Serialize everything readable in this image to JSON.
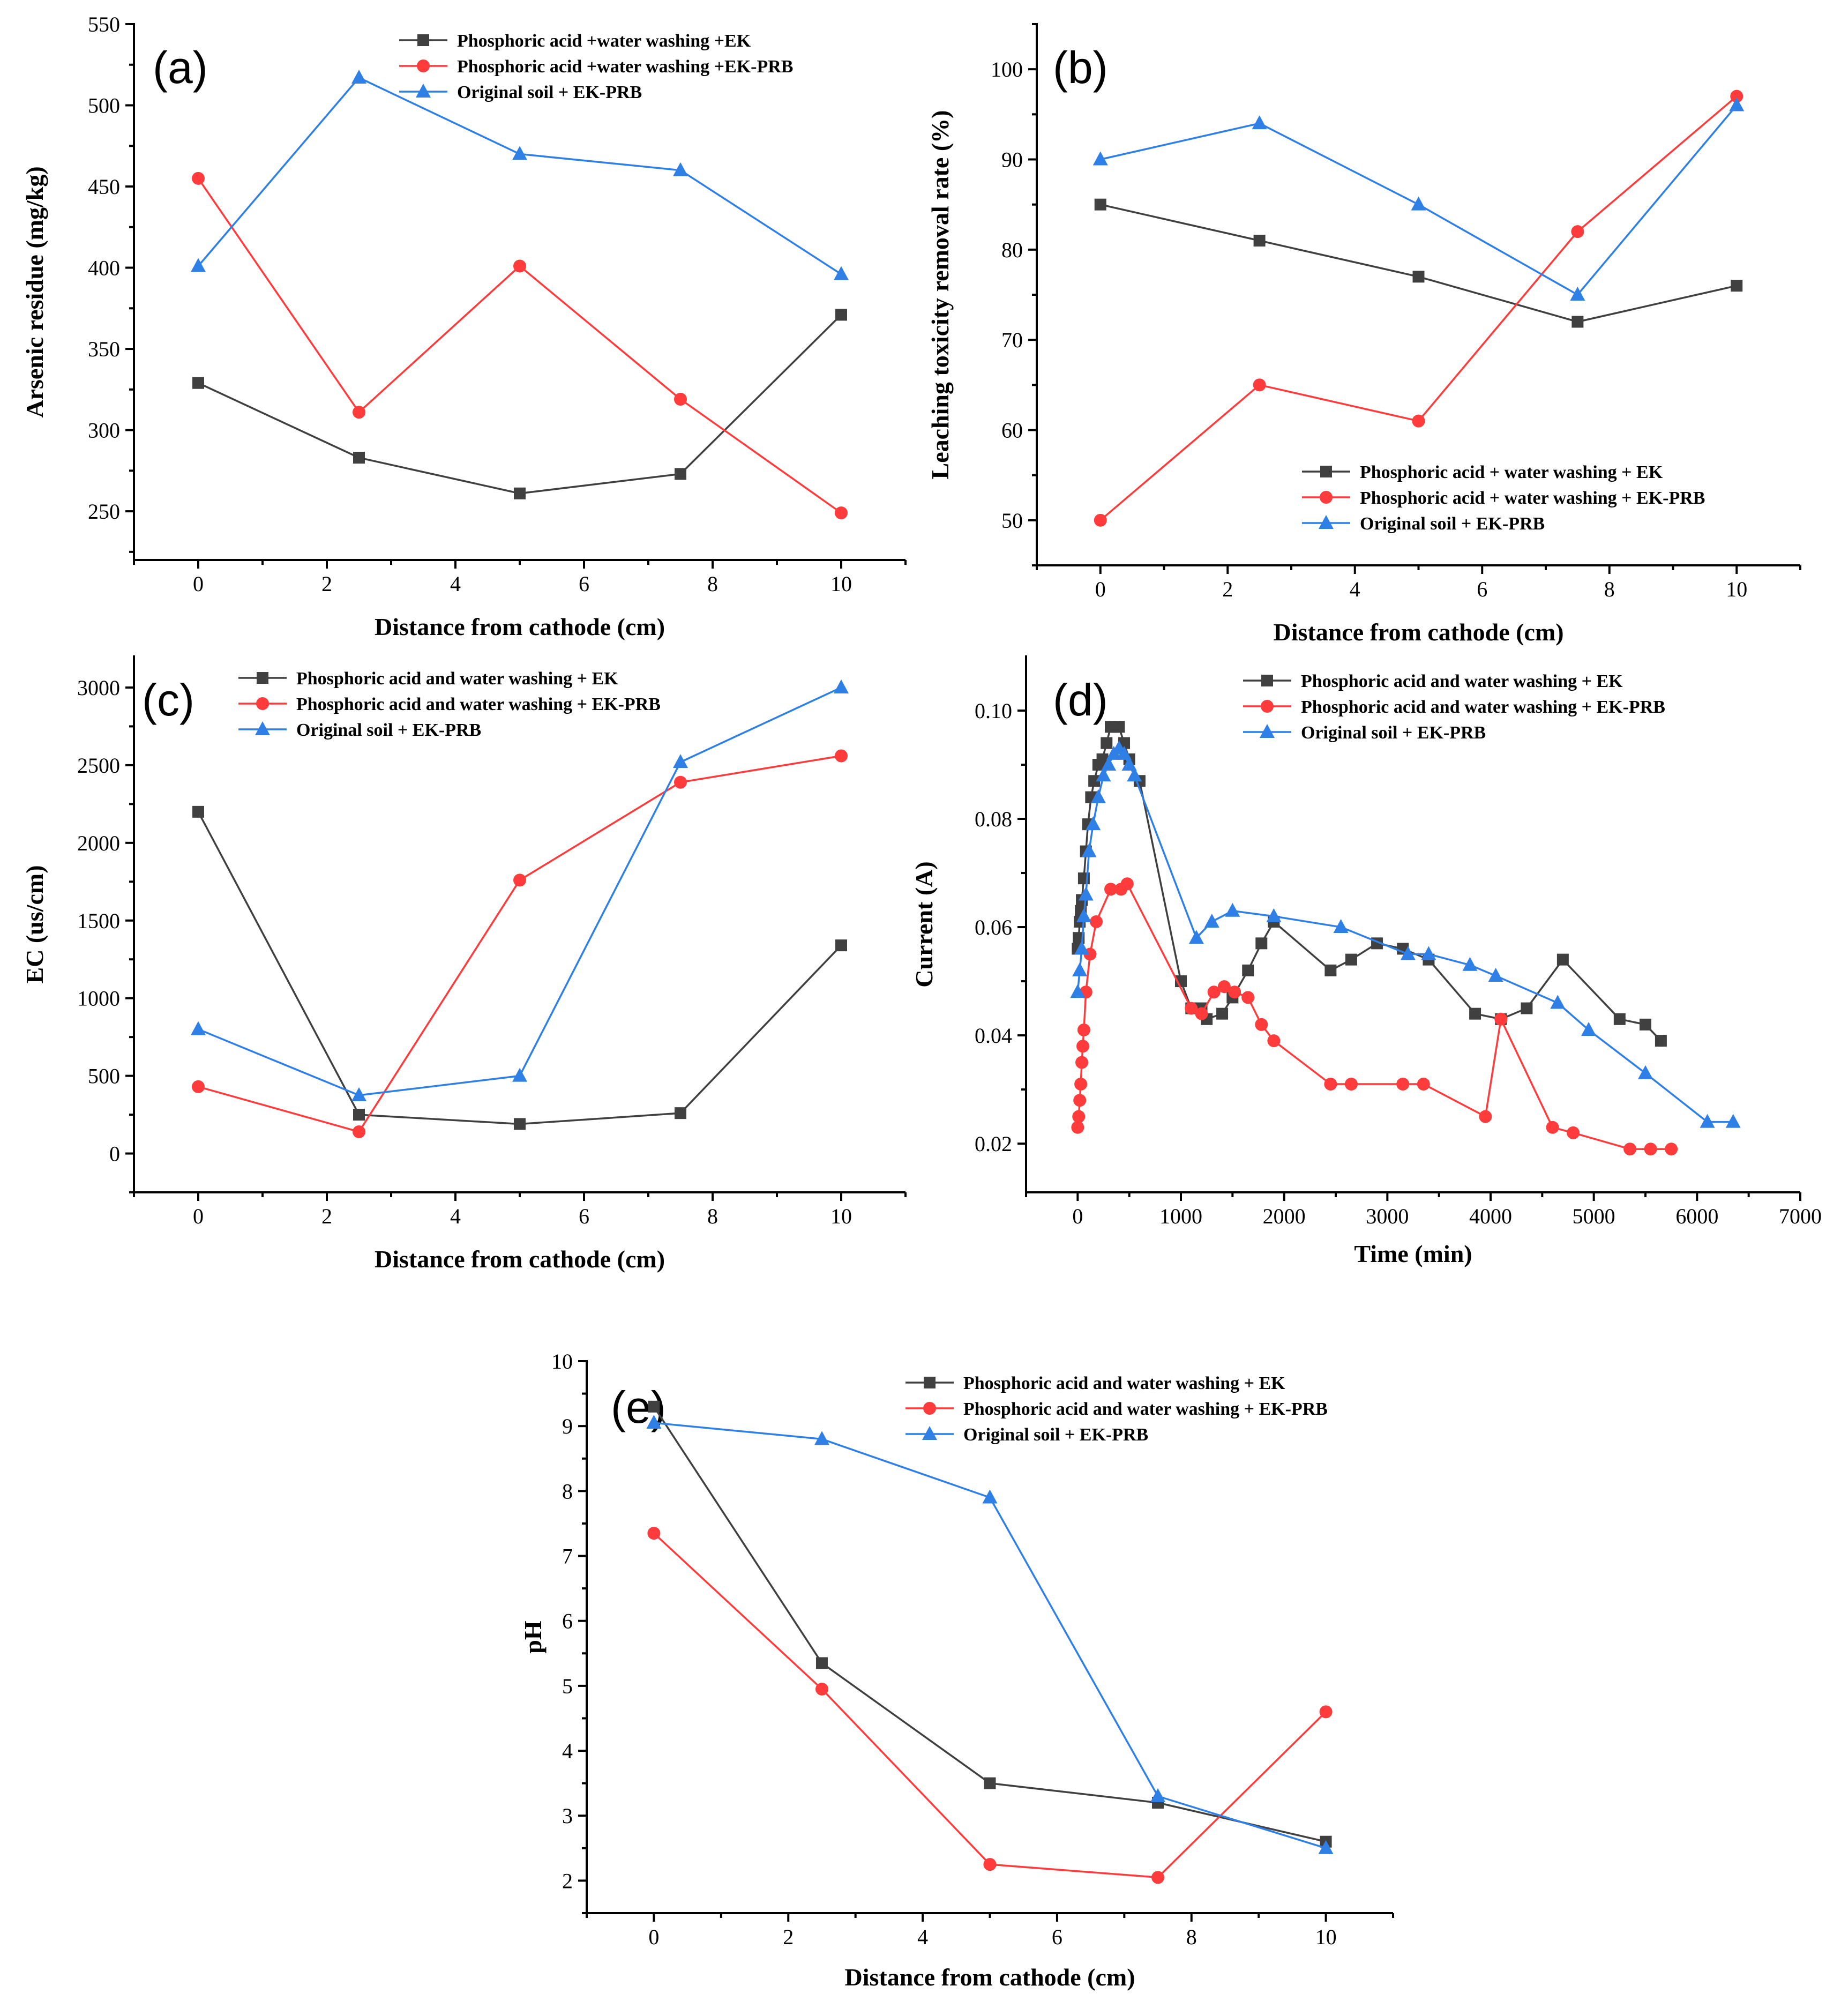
{
  "colors": {
    "black_series": "#404040",
    "red_series": "#ff3b3b",
    "blue_series": "#2f80e6",
    "axis": "#000000"
  },
  "chart_data": [
    {
      "panel_label": "(a)",
      "type": "line",
      "xlabel": "Distance from cathode (cm)",
      "ylabel": "Arsenic residue (mg/kg)",
      "xlim": [
        -1,
        11
      ],
      "ylim": [
        220,
        550
      ],
      "xticks": [
        0,
        2,
        4,
        6,
        8,
        10
      ],
      "yticks": [
        250,
        300,
        350,
        400,
        450,
        500,
        550
      ],
      "legend_position": "top",
      "series": [
        {
          "name": "Phosphoric acid +water washing +EK",
          "color": "#404040",
          "marker": "square",
          "x": [
            0,
            2.5,
            5,
            7.5,
            10
          ],
          "y": [
            329,
            283,
            261,
            273,
            371
          ]
        },
        {
          "name": "Phosphoric acid +water washing +EK-PRB",
          "color": "#ff3b3b",
          "marker": "circle",
          "x": [
            0,
            2.5,
            5,
            7.5,
            10
          ],
          "y": [
            455,
            311,
            401,
            319,
            249
          ]
        },
        {
          "name": "Original soil + EK-PRB",
          "color": "#2f80e6",
          "marker": "triangle",
          "x": [
            0,
            2.5,
            5,
            7.5,
            10
          ],
          "y": [
            401,
            517,
            470,
            460,
            396
          ]
        }
      ]
    },
    {
      "panel_label": "(b)",
      "type": "line",
      "xlabel": "Distance from cathode (cm)",
      "ylabel": "Leaching toxicity removal rate (%)",
      "xlim": [
        -1,
        11
      ],
      "ylim": [
        45,
        105
      ],
      "xticks": [
        0,
        2,
        4,
        6,
        8,
        10
      ],
      "yticks": [
        50,
        60,
        70,
        80,
        90,
        100
      ],
      "legend_position": "bottom-right",
      "series": [
        {
          "name": "Phosphoric acid + water washing + EK",
          "color": "#404040",
          "marker": "square",
          "x": [
            0,
            2.5,
            5,
            7.5,
            10
          ],
          "y": [
            85,
            81,
            77,
            72,
            76
          ]
        },
        {
          "name": "Phosphoric acid + water washing + EK-PRB",
          "color": "#ff3b3b",
          "marker": "circle",
          "x": [
            0,
            2.5,
            5,
            7.5,
            10
          ],
          "y": [
            50,
            65,
            61,
            82,
            97
          ]
        },
        {
          "name": "Original soil + EK-PRB",
          "color": "#2f80e6",
          "marker": "triangle",
          "x": [
            0,
            2.5,
            5,
            7.5,
            10
          ],
          "y": [
            90,
            94,
            85,
            75,
            96
          ]
        }
      ]
    },
    {
      "panel_label": "(c)",
      "type": "line",
      "xlabel": "Distance from cathode (cm)",
      "ylabel": "EC (us/cm)",
      "xlim": [
        -1,
        11
      ],
      "ylim": [
        -250,
        3200
      ],
      "xticks": [
        0,
        2,
        4,
        6,
        8,
        10
      ],
      "yticks": [
        0,
        500,
        1000,
        1500,
        2000,
        2500,
        3000
      ],
      "legend_position": "top",
      "series": [
        {
          "name": "Phosphoric acid and water washing + EK",
          "color": "#404040",
          "marker": "square",
          "x": [
            0,
            2.5,
            5,
            7.5,
            10
          ],
          "y": [
            2200,
            250,
            190,
            260,
            1340
          ]
        },
        {
          "name": "Phosphoric acid and water washing + EK-PRB",
          "color": "#ff3b3b",
          "marker": "circle",
          "x": [
            0,
            2.5,
            5,
            7.5,
            10
          ],
          "y": [
            430,
            140,
            1760,
            2390,
            2560
          ]
        },
        {
          "name": "Original soil + EK-PRB",
          "color": "#2f80e6",
          "marker": "triangle",
          "x": [
            0,
            2.5,
            5,
            7.5,
            10
          ],
          "y": [
            800,
            375,
            500,
            2520,
            3000
          ]
        }
      ]
    },
    {
      "panel_label": "(d)",
      "type": "line",
      "xlabel": "Time (min)",
      "ylabel": "Current (A)",
      "xlim": [
        -500,
        7000
      ],
      "ylim": [
        0.011,
        0.11
      ],
      "xticks": [
        0,
        1000,
        2000,
        3000,
        4000,
        5000,
        6000,
        7000
      ],
      "yticks": [
        0.02,
        0.04,
        0.06,
        0.08,
        0.1
      ],
      "ytick_labels": [
        "0.02",
        "0.04",
        "0.06",
        "0.08",
        "0.10"
      ],
      "legend_position": "top",
      "series": [
        {
          "name": "Phosphoric acid and water washing + EK",
          "color": "#404040",
          "marker": "square",
          "x": [
            0,
            10,
            20,
            30,
            40,
            60,
            80,
            100,
            130,
            160,
            200,
            240,
            280,
            320,
            360,
            400,
            450,
            500,
            600,
            1000,
            1100,
            1200,
            1250,
            1400,
            1500,
            1650,
            1780,
            1900,
            2450,
            2650,
            2900,
            3150,
            3400,
            3850,
            4100,
            4350,
            4700,
            5250,
            5500,
            5650
          ],
          "y": [
            0.056,
            0.058,
            0.061,
            0.063,
            0.065,
            0.069,
            0.074,
            0.079,
            0.084,
            0.087,
            0.09,
            0.091,
            0.094,
            0.097,
            0.097,
            0.097,
            0.094,
            0.091,
            0.087,
            0.05,
            0.045,
            0.045,
            0.043,
            0.044,
            0.047,
            0.052,
            0.057,
            0.061,
            0.052,
            0.054,
            0.057,
            0.056,
            0.054,
            0.044,
            0.043,
            0.045,
            0.054,
            0.043,
            0.042,
            0.039
          ]
        },
        {
          "name": "Phosphoric acid and water washing + EK-PRB",
          "color": "#ff3b3b",
          "marker": "circle",
          "x": [
            0,
            10,
            20,
            30,
            40,
            50,
            60,
            80,
            120,
            180,
            320,
            420,
            480,
            1100,
            1200,
            1320,
            1420,
            1520,
            1650,
            1780,
            1900,
            2450,
            2650,
            3150,
            3350,
            3950,
            4100,
            4600,
            4800,
            5350,
            5550,
            5750
          ],
          "y": [
            0.023,
            0.025,
            0.028,
            0.031,
            0.035,
            0.038,
            0.041,
            0.048,
            0.055,
            0.061,
            0.067,
            0.067,
            0.068,
            0.045,
            0.044,
            0.048,
            0.049,
            0.048,
            0.047,
            0.042,
            0.039,
            0.031,
            0.031,
            0.031,
            0.031,
            0.025,
            0.043,
            0.023,
            0.022,
            0.019,
            0.019,
            0.019
          ]
        },
        {
          "name": "Original soil + EK-PRB",
          "color": "#2f80e6",
          "marker": "triangle",
          "x": [
            0,
            20,
            40,
            60,
            80,
            110,
            150,
            200,
            250,
            300,
            350,
            400,
            450,
            500,
            550,
            1150,
            1300,
            1500,
            1900,
            2550,
            3200,
            3400,
            3800,
            4050,
            4650,
            4950,
            5500,
            6100,
            6350
          ],
          "y": [
            0.048,
            0.052,
            0.056,
            0.062,
            0.066,
            0.074,
            0.079,
            0.084,
            0.088,
            0.09,
            0.092,
            0.093,
            0.092,
            0.09,
            0.088,
            0.058,
            0.061,
            0.063,
            0.062,
            0.06,
            0.055,
            0.055,
            0.053,
            0.051,
            0.046,
            0.041,
            0.033,
            0.024,
            0.024
          ]
        }
      ]
    },
    {
      "panel_label": "(e)",
      "type": "line",
      "xlabel": "Distance from cathode (cm)",
      "ylabel": "pH",
      "xlim": [
        -1,
        11
      ],
      "ylim": [
        1.5,
        10
      ],
      "xticks": [
        0,
        2,
        4,
        6,
        8,
        10
      ],
      "yticks": [
        2,
        3,
        4,
        5,
        6,
        7,
        8,
        9,
        10
      ],
      "legend_position": "top",
      "series": [
        {
          "name": "Phosphoric acid and water washing + EK",
          "color": "#404040",
          "marker": "square",
          "x": [
            0,
            2.5,
            5,
            7.5,
            10
          ],
          "y": [
            9.3,
            5.35,
            3.5,
            3.2,
            2.6
          ]
        },
        {
          "name": "Phosphoric acid and water washing + EK-PRB",
          "color": "#ff3b3b",
          "marker": "circle",
          "x": [
            0,
            2.5,
            5,
            7.5,
            10
          ],
          "y": [
            7.35,
            4.95,
            2.25,
            2.05,
            4.6
          ]
        },
        {
          "name": "Original soil + EK-PRB",
          "color": "#2f80e6",
          "marker": "triangle",
          "x": [
            0,
            2.5,
            5,
            7.5,
            10
          ],
          "y": [
            9.05,
            8.8,
            7.9,
            3.3,
            2.5
          ]
        }
      ]
    }
  ]
}
